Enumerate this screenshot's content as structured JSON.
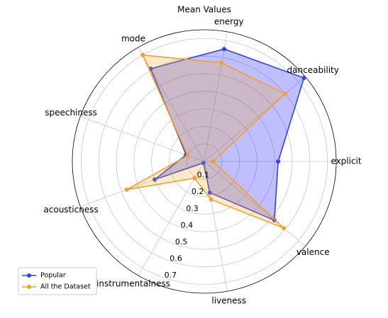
{
  "chart_data": {
    "type": "radar",
    "title": "Mean Values",
    "categories": [
      "explicit",
      "danceability",
      "energy",
      "mode",
      "speechiness",
      "acousticness",
      "instrumentalness",
      "liveness",
      "valence"
    ],
    "series": [
      {
        "name": "Popular",
        "color": "#2e45e6",
        "fill": "#0000ff",
        "values": [
          0.42,
          0.74,
          0.65,
          0.61,
          0.11,
          0.3,
          0.01,
          0.18,
          0.52
        ]
      },
      {
        "name": "All the Dataset",
        "color": "#f0a030",
        "fill": "#f5a623",
        "values": [
          0.05,
          0.6,
          0.57,
          0.7,
          0.1,
          0.47,
          0.11,
          0.22,
          0.59
        ]
      }
    ],
    "ylim": [
      0,
      0.75
    ],
    "yticks": [
      0.1,
      0.2,
      0.3,
      0.4,
      0.5,
      0.6,
      0.7
    ],
    "grid": true,
    "legend": "lower left"
  }
}
